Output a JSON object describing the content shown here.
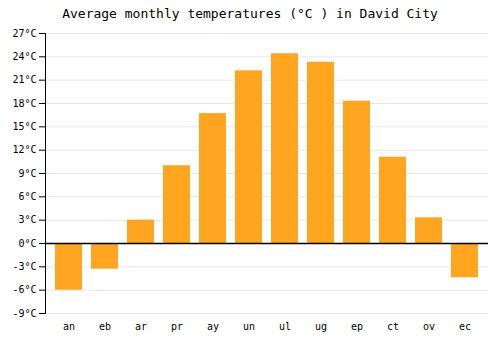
{
  "chart_data": {
    "type": "bar",
    "title": "Average monthly temperatures (°C ) in David City",
    "categories": [
      "an",
      "eb",
      "ar",
      "pr",
      "ay",
      "un",
      "ul",
      "ug",
      "ep",
      "ct",
      "ov",
      "ec"
    ],
    "values": [
      -6.0,
      -3.3,
      3.0,
      10.0,
      16.7,
      22.2,
      24.4,
      23.3,
      18.3,
      11.1,
      3.3,
      -4.4
    ],
    "color": "#FFA520",
    "ylim": [
      -9,
      27
    ],
    "yticks": [
      {
        "value": -9,
        "label": "-9°C"
      },
      {
        "value": -6,
        "label": "-6°C"
      },
      {
        "value": -3,
        "label": "-3°C"
      },
      {
        "value": 0,
        "label": "0°C"
      },
      {
        "value": 3,
        "label": "3°C"
      },
      {
        "value": 6,
        "label": "6°C"
      },
      {
        "value": 9,
        "label": "9°C"
      },
      {
        "value": 12,
        "label": "12°C"
      },
      {
        "value": 15,
        "label": "15°C"
      },
      {
        "value": 18,
        "label": "18°C"
      },
      {
        "value": 21,
        "label": "21°C"
      },
      {
        "value": 24,
        "label": "24°C"
      },
      {
        "value": 27,
        "label": "27°C"
      }
    ],
    "grid": true
  }
}
